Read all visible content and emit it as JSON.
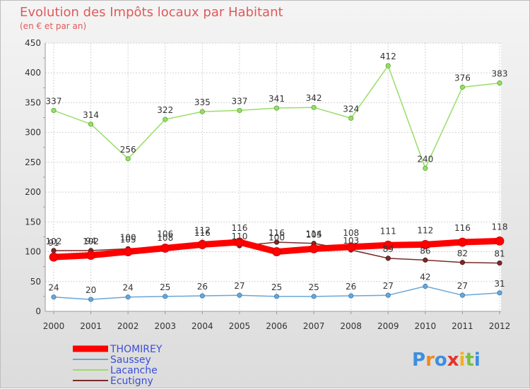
{
  "chart_data": {
    "type": "line",
    "title": "Evolution des Impôts locaux par Habitant",
    "subtitle": "(en € et par an)",
    "x": [
      "2000",
      "2001",
      "2002",
      "2003",
      "2004",
      "2005",
      "2006",
      "2007",
      "2008",
      "2009",
      "2010",
      "2011",
      "2012"
    ],
    "ylim": [
      0,
      450
    ],
    "yticks": [
      0,
      50,
      100,
      150,
      200,
      250,
      300,
      350,
      400,
      450
    ],
    "grid": true,
    "legend_position": "bottom-left",
    "series": [
      {
        "name": "THOMIREY",
        "color": "#ff0000",
        "values": [
          91,
          94,
          100,
          106,
          112,
          116,
          100,
          105,
          108,
          111,
          112,
          116,
          118
        ]
      },
      {
        "name": "Saussey",
        "color": "#6aa6d6",
        "values": [
          24,
          20,
          24,
          25,
          26,
          27,
          25,
          25,
          26,
          27,
          42,
          27,
          31
        ]
      },
      {
        "name": "Lacanche",
        "color": "#99dd66",
        "values": [
          337,
          314,
          256,
          322,
          335,
          337,
          341,
          342,
          324,
          412,
          240,
          376,
          383
        ]
      },
      {
        "name": "Ecutigny",
        "color": "#7a2a2a",
        "values": [
          102,
          102,
          105,
          108,
          116,
          110,
          116,
          114,
          103,
          89,
          86,
          82,
          81
        ]
      }
    ]
  },
  "branding": {
    "logo_text": "Proxiti"
  }
}
